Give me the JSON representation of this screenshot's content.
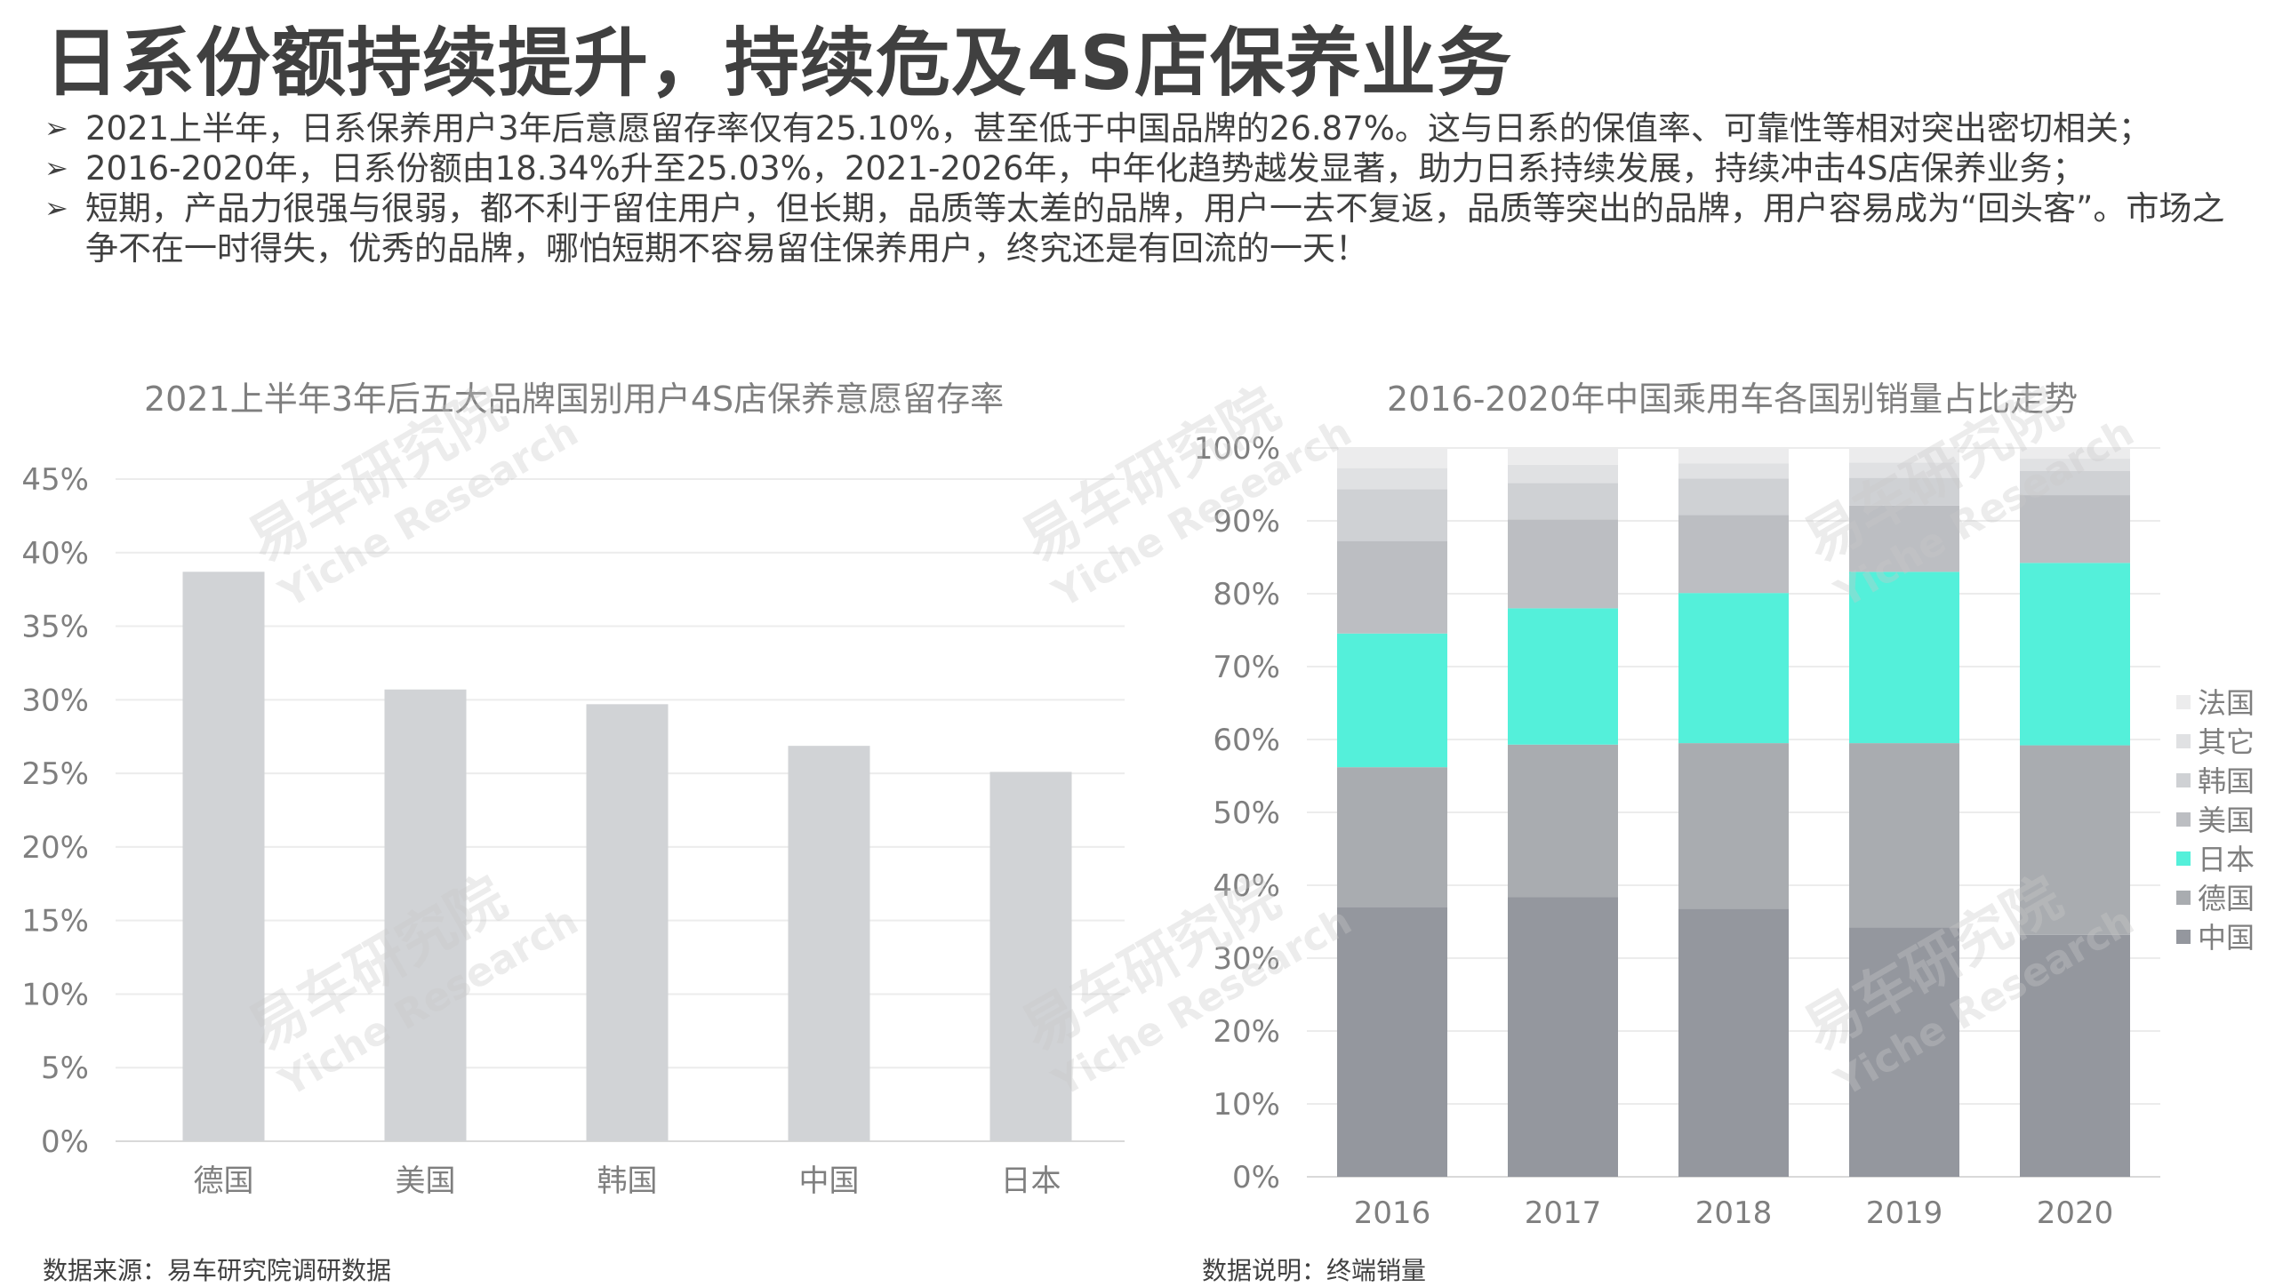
{
  "title": "日系份额持续提升，持续危及4S店保养业务",
  "bullets": [
    "2021上半年，日系保养用户3年后意愿留存率仅有25.10%，甚至低于中国品牌的26.87%。这与日系的保值率、可靠性等相对突出密切相关；",
    "2016-2020年，日系份额由18.34%升至25.03%，2021-2026年，中年化趋势越发显著，助力日系持续发展，持续冲击4S店保养业务；",
    "短期，产品力很强与很弱，都不利于留住用户，但长期，品质等太差的品牌，用户一去不复返，品质等突出的品牌，用户容易成为“回头客”。市场之争不在一时得失，优秀的品牌，哪怕短期不容易留住保养用户，终究还是有回流的一天！"
  ],
  "watermark": {
    "cn": "易车研究院",
    "en": "Yiche Research"
  },
  "chart_data": [
    {
      "type": "bar",
      "title": "2021上半年3年后五大品牌国别用户4S店保养意愿留存率",
      "categories": [
        "德国",
        "美国",
        "韩国",
        "中国",
        "日本"
      ],
      "values": [
        38.7,
        30.7,
        29.7,
        26.87,
        25.1
      ],
      "yticks": [
        "0%",
        "5%",
        "10%",
        "15%",
        "20%",
        "25%",
        "30%",
        "35%",
        "40%",
        "45%"
      ],
      "ylim": [
        0,
        45
      ],
      "color": "#d1d3d6",
      "grid": true
    },
    {
      "type": "bar",
      "stacked": true,
      "title": "2016-2020年中国乘用车各国别销量占比走势",
      "categories": [
        "2016",
        "2017",
        "2018",
        "2019",
        "2020"
      ],
      "yticks": [
        "0%",
        "10%",
        "20%",
        "30%",
        "40%",
        "50%",
        "60%",
        "70%",
        "80%",
        "90%",
        "100%"
      ],
      "ylim": [
        0,
        100
      ],
      "legend_position": "right",
      "series": [
        {
          "name": "中国",
          "color": "#94979e",
          "values": [
            37.0,
            38.4,
            36.8,
            34.2,
            33.2
          ]
        },
        {
          "name": "德国",
          "color": "#a9acb0",
          "values": [
            19.2,
            20.9,
            22.7,
            25.3,
            26.0
          ]
        },
        {
          "name": "日本",
          "color": "#54f0da",
          "values": [
            18.34,
            18.7,
            20.6,
            23.5,
            25.03
          ]
        },
        {
          "name": "美国",
          "color": "#bcbec2",
          "values": [
            12.7,
            12.2,
            10.7,
            9.1,
            9.3
          ]
        },
        {
          "name": "韩国",
          "color": "#cfd1d4",
          "values": [
            7.1,
            5.0,
            5.0,
            3.8,
            3.3
          ]
        },
        {
          "name": "其它",
          "color": "#e0e1e3",
          "values": [
            2.9,
            2.5,
            2.1,
            2.1,
            1.7
          ]
        },
        {
          "name": "法国",
          "color": "#ececed",
          "values": [
            2.76,
            2.3,
            2.1,
            2.0,
            1.47
          ]
        }
      ]
    }
  ],
  "footnotes": {
    "left": "数据来源：易车研究院调研数据",
    "right": "数据说明：终端销量"
  }
}
